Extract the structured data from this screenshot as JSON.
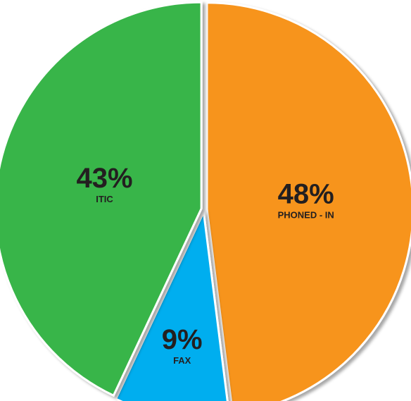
{
  "chart_data": {
    "type": "pie",
    "categories": [
      "PHONED - IN",
      "FAX",
      "ITIC"
    ],
    "values": [
      48,
      9,
      43
    ],
    "value_labels": [
      "48%",
      "9%",
      "43%"
    ],
    "colors": [
      "#f7941d",
      "#00aeef",
      "#39b54a"
    ]
  }
}
